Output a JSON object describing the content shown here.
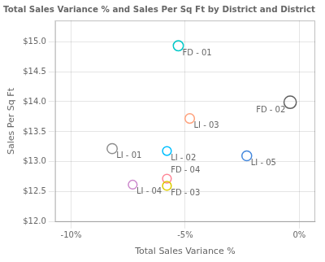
{
  "chart_data": {
    "type": "scatter",
    "title": "Total Sales Variance % and Sales Per Sq Ft by District and District",
    "xlabel": "Total Sales Variance %",
    "ylabel": "Sales Per Sq Ft",
    "xlim": [
      -0.107,
      0.007
    ],
    "ylim": [
      12.0,
      15.35
    ],
    "xticks": [
      {
        "value": -0.1,
        "label": "-10%"
      },
      {
        "value": -0.05,
        "label": "-5%"
      },
      {
        "value": 0.0,
        "label": "0%"
      }
    ],
    "yticks": [
      {
        "value": 12.0,
        "label": "$12.0"
      },
      {
        "value": 12.5,
        "label": "$12.5"
      },
      {
        "value": 13.0,
        "label": "$13.0"
      },
      {
        "value": 13.5,
        "label": "$13.5"
      },
      {
        "value": 14.0,
        "label": "$14.0"
      },
      {
        "value": 14.5,
        "label": "$14.5"
      },
      {
        "value": 15.0,
        "label": "$15.0"
      }
    ],
    "x": [
      -0.053,
      -0.004,
      -0.048,
      -0.082,
      -0.058,
      -0.023,
      -0.073,
      -0.058,
      -0.058
    ],
    "values": [
      14.93,
      13.99,
      13.72,
      13.22,
      13.18,
      13.1,
      12.62,
      12.72,
      12.6
    ],
    "point_labels": [
      "FD - 01",
      "FD - 02",
      "LI - 03",
      "LI - 01",
      "LI - 02",
      "LI - 05",
      "LI - 04",
      "FD - 04",
      "FD - 03"
    ],
    "colors": [
      "#00C8C8",
      "#606060",
      "#FFA07A",
      "#909090",
      "#00BFFF",
      "#4488DD",
      "#CC88CC",
      "#FF8898",
      "#DDCC00"
    ],
    "sizes": [
      80,
      120,
      70,
      80,
      60,
      75,
      60,
      60,
      60
    ],
    "marker": "circle",
    "grid": true
  }
}
